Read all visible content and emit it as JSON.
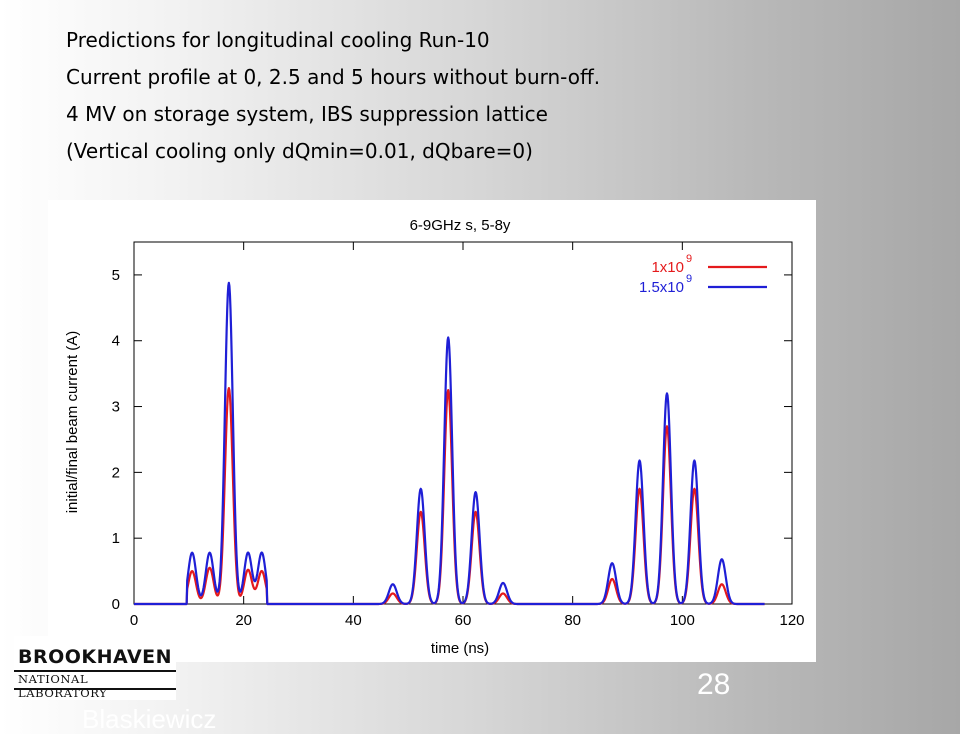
{
  "slide": {
    "lines": [
      "Predictions for longitudinal cooling Run-10",
      "Current profile at 0, 2.5 and 5 hours without burn-off.",
      "4 MV on storage system, IBS suppression lattice",
      "(Vertical cooling only dQmin=0.01, dQbare=0)"
    ],
    "page_number": "28",
    "footer_fragment": "Blaskiewicz"
  },
  "logo": {
    "top_text": "BROOKHAVEN",
    "bottom_text": "NATIONAL LABORATORY",
    "icon": "brookhaven-logo-icon"
  },
  "chart_data": {
    "type": "line",
    "title": "6-9GHz s, 5-8y",
    "xlabel": "time (ns)",
    "ylabel": "initial/final beam current (A)",
    "xlim": [
      0,
      120
    ],
    "ylim": [
      0,
      5.5
    ],
    "xticks": [
      0,
      20,
      40,
      60,
      80,
      100,
      120
    ],
    "yticks": [
      0,
      1,
      2,
      3,
      4,
      5
    ],
    "grid": false,
    "legend_position": "top-right",
    "series": [
      {
        "name": "1x10^9",
        "legend_base": "1x10",
        "legend_exp": "9",
        "color": "#e41a1c",
        "peaks": [
          {
            "x": 10.6,
            "y": 0.5
          },
          {
            "x": 13.8,
            "y": 0.55
          },
          {
            "x": 17.3,
            "y": 3.28
          },
          {
            "x": 20.8,
            "y": 0.52
          },
          {
            "x": 23.3,
            "y": 0.5
          },
          {
            "x": 47.2,
            "y": 0.16
          },
          {
            "x": 52.3,
            "y": 1.4
          },
          {
            "x": 57.3,
            "y": 3.25
          },
          {
            "x": 62.3,
            "y": 1.4
          },
          {
            "x": 67.3,
            "y": 0.16
          },
          {
            "x": 87.2,
            "y": 0.38
          },
          {
            "x": 92.2,
            "y": 1.75
          },
          {
            "x": 97.2,
            "y": 2.7
          },
          {
            "x": 102.2,
            "y": 1.75
          },
          {
            "x": 107.2,
            "y": 0.3
          }
        ]
      },
      {
        "name": "1.5x10^9",
        "legend_base": "1.5x10",
        "legend_exp": "9",
        "color": "#1f1fd6",
        "peaks": [
          {
            "x": 10.6,
            "y": 0.78
          },
          {
            "x": 13.8,
            "y": 0.78
          },
          {
            "x": 17.3,
            "y": 4.88
          },
          {
            "x": 20.8,
            "y": 0.78
          },
          {
            "x": 23.3,
            "y": 0.78
          },
          {
            "x": 47.2,
            "y": 0.3
          },
          {
            "x": 52.3,
            "y": 1.75
          },
          {
            "x": 57.3,
            "y": 4.05
          },
          {
            "x": 62.3,
            "y": 1.7
          },
          {
            "x": 67.3,
            "y": 0.32
          },
          {
            "x": 87.2,
            "y": 0.62
          },
          {
            "x": 92.2,
            "y": 2.18
          },
          {
            "x": 97.2,
            "y": 3.2
          },
          {
            "x": 102.2,
            "y": 2.18
          },
          {
            "x": 107.2,
            "y": 0.68
          }
        ]
      }
    ],
    "bunch_supports": [
      [
        9.6,
        24.3
      ],
      [
        44.5,
        70.5
      ],
      [
        84.5,
        110.5
      ]
    ]
  }
}
